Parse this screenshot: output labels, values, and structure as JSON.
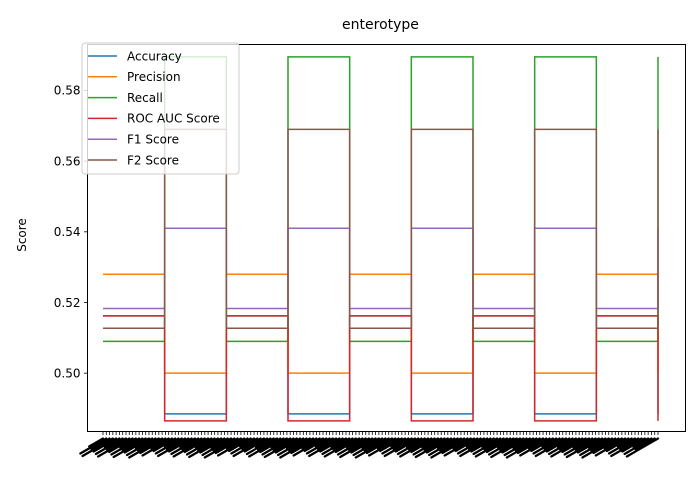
{
  "chart_data": {
    "type": "line",
    "drawstyle": "steps",
    "title": "enterotype",
    "xlabel": "",
    "ylabel": "Score",
    "ylim": [
      0.4835,
      0.593
    ],
    "yticks": [
      0.5,
      0.52,
      0.54,
      0.56,
      0.58
    ],
    "ytick_labels": [
      "0.50",
      "0.52",
      "0.54",
      "0.56",
      "0.58"
    ],
    "x_count": 10,
    "xtick_labels_legible": false,
    "legend_position": "upper-left",
    "grid": false,
    "series": [
      {
        "name": "Accuracy",
        "color": "#1f77b4",
        "values": [
          0.5162,
          0.4885,
          0.5162,
          0.4885,
          0.5162,
          0.4885,
          0.5162,
          0.4885,
          0.5162,
          0.4885
        ]
      },
      {
        "name": "Precision",
        "color": "#ff7f0e",
        "values": [
          0.528,
          0.5,
          0.528,
          0.5,
          0.528,
          0.5,
          0.528,
          0.5,
          0.528,
          0.5
        ]
      },
      {
        "name": "Recall",
        "color": "#2ca02c",
        "values": [
          0.509,
          0.5895,
          0.509,
          0.5895,
          0.509,
          0.5895,
          0.509,
          0.5895,
          0.509,
          0.5895
        ]
      },
      {
        "name": "ROC AUC Score",
        "color": "#d62728",
        "values": [
          0.5162,
          0.4865,
          0.5162,
          0.4865,
          0.5162,
          0.4865,
          0.5162,
          0.4865,
          0.5162,
          0.4865
        ]
      },
      {
        "name": "F1 Score",
        "color": "#9467bd",
        "values": [
          0.5183,
          0.541,
          0.5183,
          0.541,
          0.5183,
          0.541,
          0.5183,
          0.541,
          0.5183,
          0.541
        ]
      },
      {
        "name": "F2 Score",
        "color": "#8c564b",
        "values": [
          0.5127,
          0.569,
          0.5127,
          0.569,
          0.5127,
          0.569,
          0.5127,
          0.569,
          0.5127,
          0.569
        ]
      }
    ]
  }
}
